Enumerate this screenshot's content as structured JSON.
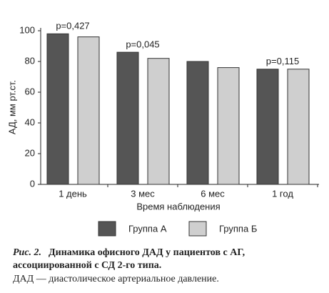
{
  "chart_data": {
    "type": "bar",
    "ylabel": "АД, мм рт.ст.",
    "xlabel": "Время наблюдения",
    "categories": [
      "1 день",
      "3 мес",
      "6 мес",
      "1 год"
    ],
    "series": [
      {
        "name": "Группа А",
        "color": "#555555",
        "values": [
          98,
          86,
          80,
          75
        ]
      },
      {
        "name": "Группа Б",
        "color": "#cfcfcf",
        "values": [
          96,
          82,
          76,
          75
        ]
      }
    ],
    "ylim": [
      0,
      100
    ],
    "yticks": [
      0,
      20,
      40,
      60,
      80,
      100
    ],
    "annotations": [
      "p=0,427",
      "p=0,045",
      "p=0,115"
    ],
    "caption_label": "Рис. 2.",
    "title": [
      "Динамика офисного ДАД у пациентов с АГ,",
      "ассоциированной с СД 2-го типа."
    ],
    "note": "ДАД — диастолическое артериальное давление."
  }
}
